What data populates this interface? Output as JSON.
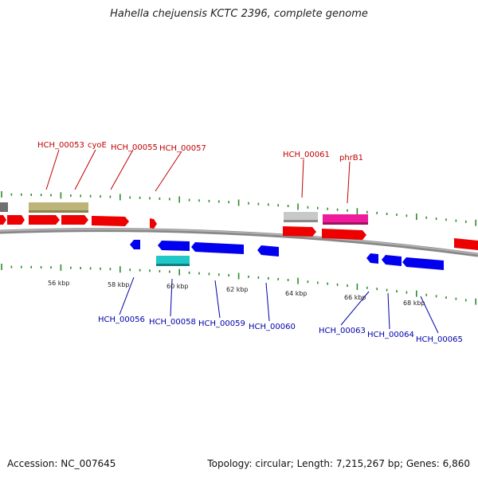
{
  "title": "Hahella chejuensis KCTC 2396, complete genome",
  "footer": {
    "accession": "Accession: NC_007645",
    "summary": "Topology: circular; Length: 7,215,267 bp; Genes: 6,860"
  },
  "colors": {
    "forward_label": "#c00000",
    "reverse_label": "#0000aa",
    "forward_gene": "#ee0000",
    "reverse_gene": "#0000ee",
    "backbone": "#888888",
    "tick": "#2a8c2a",
    "olive": "#bdb47a",
    "light_gray": "#c8c8c8",
    "magenta": "#ee1c9c",
    "cyan": "#22c8c8",
    "dark_gray": "#707070"
  },
  "scale_labels": [
    "56 kbp",
    "58 kbp",
    "60 kbp",
    "62 kbp",
    "64 kbp",
    "66 kbp",
    "68 kbp"
  ],
  "forward_labels": [
    "HCH_00053",
    "cyoE",
    "HCH_00055",
    "HCH_00057",
    "HCH_00061",
    "phrB1"
  ],
  "reverse_labels": [
    "HCH_00056",
    "HCH_00058",
    "HCH_00059",
    "HCH_00060",
    "HCH_00063",
    "HCH_00064",
    "HCH_00065"
  ]
}
